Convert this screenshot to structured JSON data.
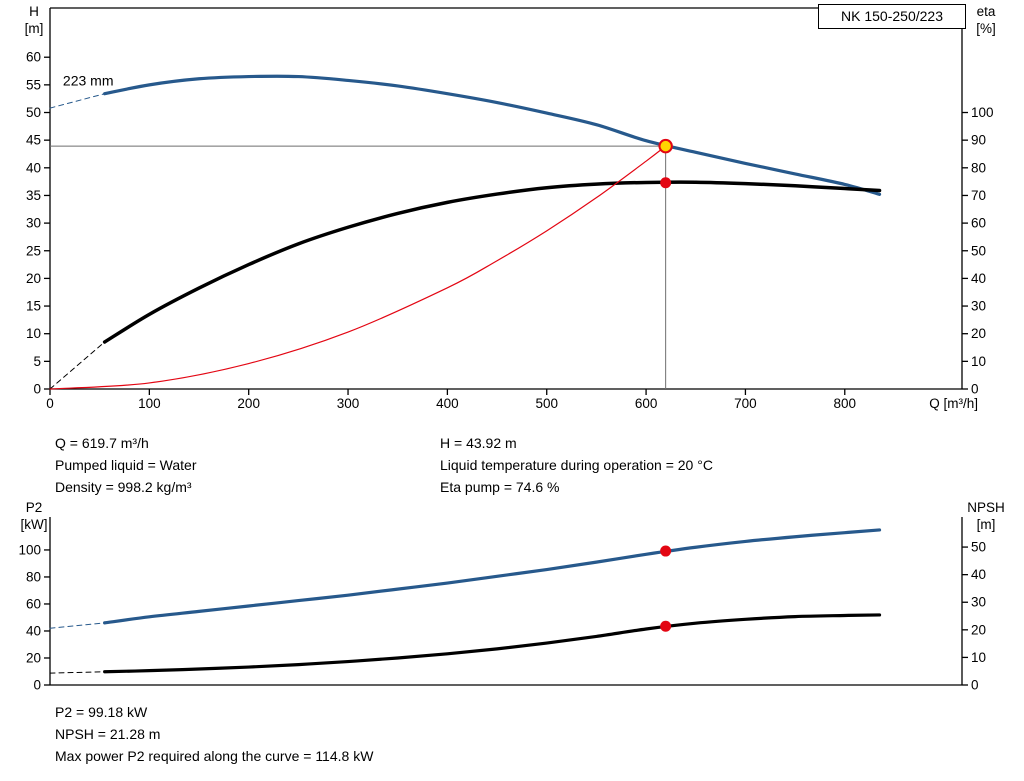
{
  "title_box": {
    "label": "NK 150-250/223"
  },
  "info_top": {
    "col1": [
      "Q = 619.7 m³/h",
      "Pumped liquid = Water",
      "Density = 998.2 kg/m³"
    ],
    "col2": [
      "H = 43.92 m",
      "Liquid temperature during operation = 20 °C",
      "Eta pump = 74.6 %"
    ]
  },
  "info_bottom": [
    "P2 = 99.18 kW",
    "NPSH = 21.28 m",
    "Max power P2 required along the curve = 114.8 kW"
  ],
  "colors": {
    "curve_blue": "#27598c",
    "curve_black": "#000000",
    "curve_red": "#e30613",
    "marker_yellow": "#ffd500",
    "guide_gray": "#6e6e6e"
  },
  "chart_data": [
    {
      "type": "line",
      "title": "NK 150-250/223",
      "x_axis": {
        "label": "Q [m³/h]",
        "min": 0,
        "max": 918,
        "ticks": [
          0,
          100,
          200,
          300,
          400,
          500,
          600,
          700,
          800
        ]
      },
      "y_left": {
        "label": [
          "H",
          "[m]"
        ],
        "min": 0,
        "max": 68.9,
        "ticks": [
          0,
          5,
          10,
          15,
          20,
          25,
          30,
          35,
          40,
          45,
          50,
          55,
          60
        ]
      },
      "y_right": {
        "label": [
          "eta",
          "[%]"
        ],
        "min": 0,
        "max": 137.8,
        "ticks": [
          0,
          10,
          20,
          30,
          40,
          50,
          60,
          70,
          80,
          90,
          100
        ]
      },
      "series": [
        {
          "name": "head-curve-dashed",
          "axis": "left",
          "color": "#27598c",
          "width": 1,
          "dash": true,
          "points": [
            [
              0,
              50.8
            ],
            [
              55,
              53.4
            ]
          ]
        },
        {
          "name": "head-curve-223mm",
          "axis": "left",
          "color": "#27598c",
          "width": 3.2,
          "dash": false,
          "points": [
            [
              55,
              53.4
            ],
            [
              100,
              55.0
            ],
            [
              150,
              56.1
            ],
            [
              200,
              56.5
            ],
            [
              250,
              56.5
            ],
            [
              300,
              55.8
            ],
            [
              350,
              54.8
            ],
            [
              400,
              53.4
            ],
            [
              450,
              51.8
            ],
            [
              500,
              49.9
            ],
            [
              550,
              47.8
            ],
            [
              600,
              44.9
            ],
            [
              650,
              42.8
            ],
            [
              700,
              40.8
            ],
            [
              750,
              38.9
            ],
            [
              800,
              37.0
            ],
            [
              835,
              35.2
            ]
          ]
        },
        {
          "name": "efficiency-curve-dashed",
          "axis": "right",
          "color": "#000000",
          "width": 1,
          "dash": true,
          "points": [
            [
              0,
              0
            ],
            [
              55,
              17
            ]
          ]
        },
        {
          "name": "efficiency-curve",
          "axis": "right",
          "color": "#000000",
          "width": 3.5,
          "dash": false,
          "points": [
            [
              55,
              17
            ],
            [
              100,
              27
            ],
            [
              150,
              36.5
            ],
            [
              200,
              45
            ],
            [
              250,
              52.5
            ],
            [
              300,
              58.5
            ],
            [
              350,
              63.5
            ],
            [
              400,
              67.5
            ],
            [
              450,
              70.5
            ],
            [
              500,
              72.8
            ],
            [
              550,
              74.1
            ],
            [
              600,
              74.7
            ],
            [
              650,
              74.8
            ],
            [
              700,
              74.3
            ],
            [
              750,
              73.5
            ],
            [
              800,
              72.5
            ],
            [
              835,
              71.8
            ]
          ]
        },
        {
          "name": "system-curve",
          "axis": "left",
          "color": "#e30613",
          "width": 1.2,
          "dash": false,
          "points": [
            [
              0,
              0
            ],
            [
              100,
              1.1
            ],
            [
              200,
              4.6
            ],
            [
              300,
              10.3
            ],
            [
              400,
              18.3
            ],
            [
              450,
              23.2
            ],
            [
              500,
              28.6
            ],
            [
              550,
              34.6
            ],
            [
              600,
              41.2
            ],
            [
              619.7,
              43.92
            ]
          ]
        }
      ],
      "guides": [
        {
          "name": "duty-head-guide-h",
          "type": "h",
          "v": 43.92,
          "from": 0,
          "to": 619.7,
          "color": "#6e6e6e"
        },
        {
          "name": "duty-flow-guide-v",
          "type": "v",
          "q": 619.7,
          "from": 0,
          "to": 43.92,
          "color": "#6e6e6e"
        }
      ],
      "markers": [
        {
          "name": "efficiency-point-marker",
          "q": 619.7,
          "value": 74.6,
          "axis": "right",
          "fill": "#e30613",
          "stroke": "none",
          "r": 5.5,
          "stroke_width": 0
        },
        {
          "name": "duty-point-marker",
          "q": 619.7,
          "value": 43.92,
          "axis": "left",
          "fill": "#ffd500",
          "stroke": "#e30613",
          "r": 6.2,
          "stroke_width": 2
        }
      ],
      "annotations": [
        {
          "name": "impeller-diameter-label",
          "text": "223 mm",
          "q": 13,
          "value": 55.6,
          "axis": "left"
        }
      ]
    },
    {
      "type": "line",
      "title": "",
      "x_axis": {
        "label": "",
        "min": 0,
        "max": 918,
        "ticks": []
      },
      "y_left": {
        "label": [
          "P2",
          "[kW]"
        ],
        "min": 0,
        "max": 124.4,
        "ticks": [
          0,
          20,
          40,
          60,
          80,
          100
        ]
      },
      "y_right": {
        "label": [
          "NPSH",
          "[m]"
        ],
        "min": 0,
        "max": 60.9,
        "ticks": [
          0,
          10,
          20,
          30,
          40,
          50
        ]
      },
      "series": [
        {
          "name": "power-curve-dashed",
          "axis": "left",
          "color": "#27598c",
          "width": 1,
          "dash": true,
          "points": [
            [
              0,
              42
            ],
            [
              55,
              46
            ]
          ]
        },
        {
          "name": "power-curve",
          "axis": "left",
          "color": "#27598c",
          "width": 3.2,
          "dash": false,
          "points": [
            [
              55,
              46
            ],
            [
              100,
              50.5
            ],
            [
              150,
              54.5
            ],
            [
              200,
              58.5
            ],
            [
              250,
              62.5
            ],
            [
              300,
              66.5
            ],
            [
              350,
              71
            ],
            [
              400,
              75.5
            ],
            [
              450,
              80.5
            ],
            [
              500,
              85.5
            ],
            [
              550,
              91
            ],
            [
              600,
              96.8
            ],
            [
              650,
              102
            ],
            [
              700,
              106.3
            ],
            [
              750,
              109.8
            ],
            [
              800,
              112.8
            ],
            [
              835,
              114.8
            ]
          ]
        },
        {
          "name": "npsh-curve-dashed",
          "axis": "right",
          "color": "#000000",
          "width": 1,
          "dash": true,
          "points": [
            [
              0,
              4.3
            ],
            [
              55,
              4.8
            ]
          ]
        },
        {
          "name": "npsh-curve",
          "axis": "right",
          "color": "#000000",
          "width": 3.2,
          "dash": false,
          "points": [
            [
              55,
              4.8
            ],
            [
              100,
              5.2
            ],
            [
              150,
              5.8
            ],
            [
              200,
              6.5
            ],
            [
              250,
              7.4
            ],
            [
              300,
              8.5
            ],
            [
              350,
              9.8
            ],
            [
              400,
              11.3
            ],
            [
              450,
              13.1
            ],
            [
              500,
              15.2
            ],
            [
              550,
              17.6
            ],
            [
              600,
              20.3
            ],
            [
              650,
              22.4
            ],
            [
              700,
              23.8
            ],
            [
              750,
              24.8
            ],
            [
              800,
              25.2
            ],
            [
              835,
              25.4
            ]
          ]
        }
      ],
      "guides": [],
      "markers": [
        {
          "name": "power-point-marker",
          "q": 619.7,
          "value": 99.18,
          "axis": "left",
          "fill": "#e30613",
          "stroke": "none",
          "r": 5.5,
          "stroke_width": 0
        },
        {
          "name": "npsh-point-marker",
          "q": 619.7,
          "value": 21.28,
          "axis": "right",
          "fill": "#e30613",
          "stroke": "none",
          "r": 5.5,
          "stroke_width": 0
        }
      ],
      "annotations": []
    }
  ]
}
